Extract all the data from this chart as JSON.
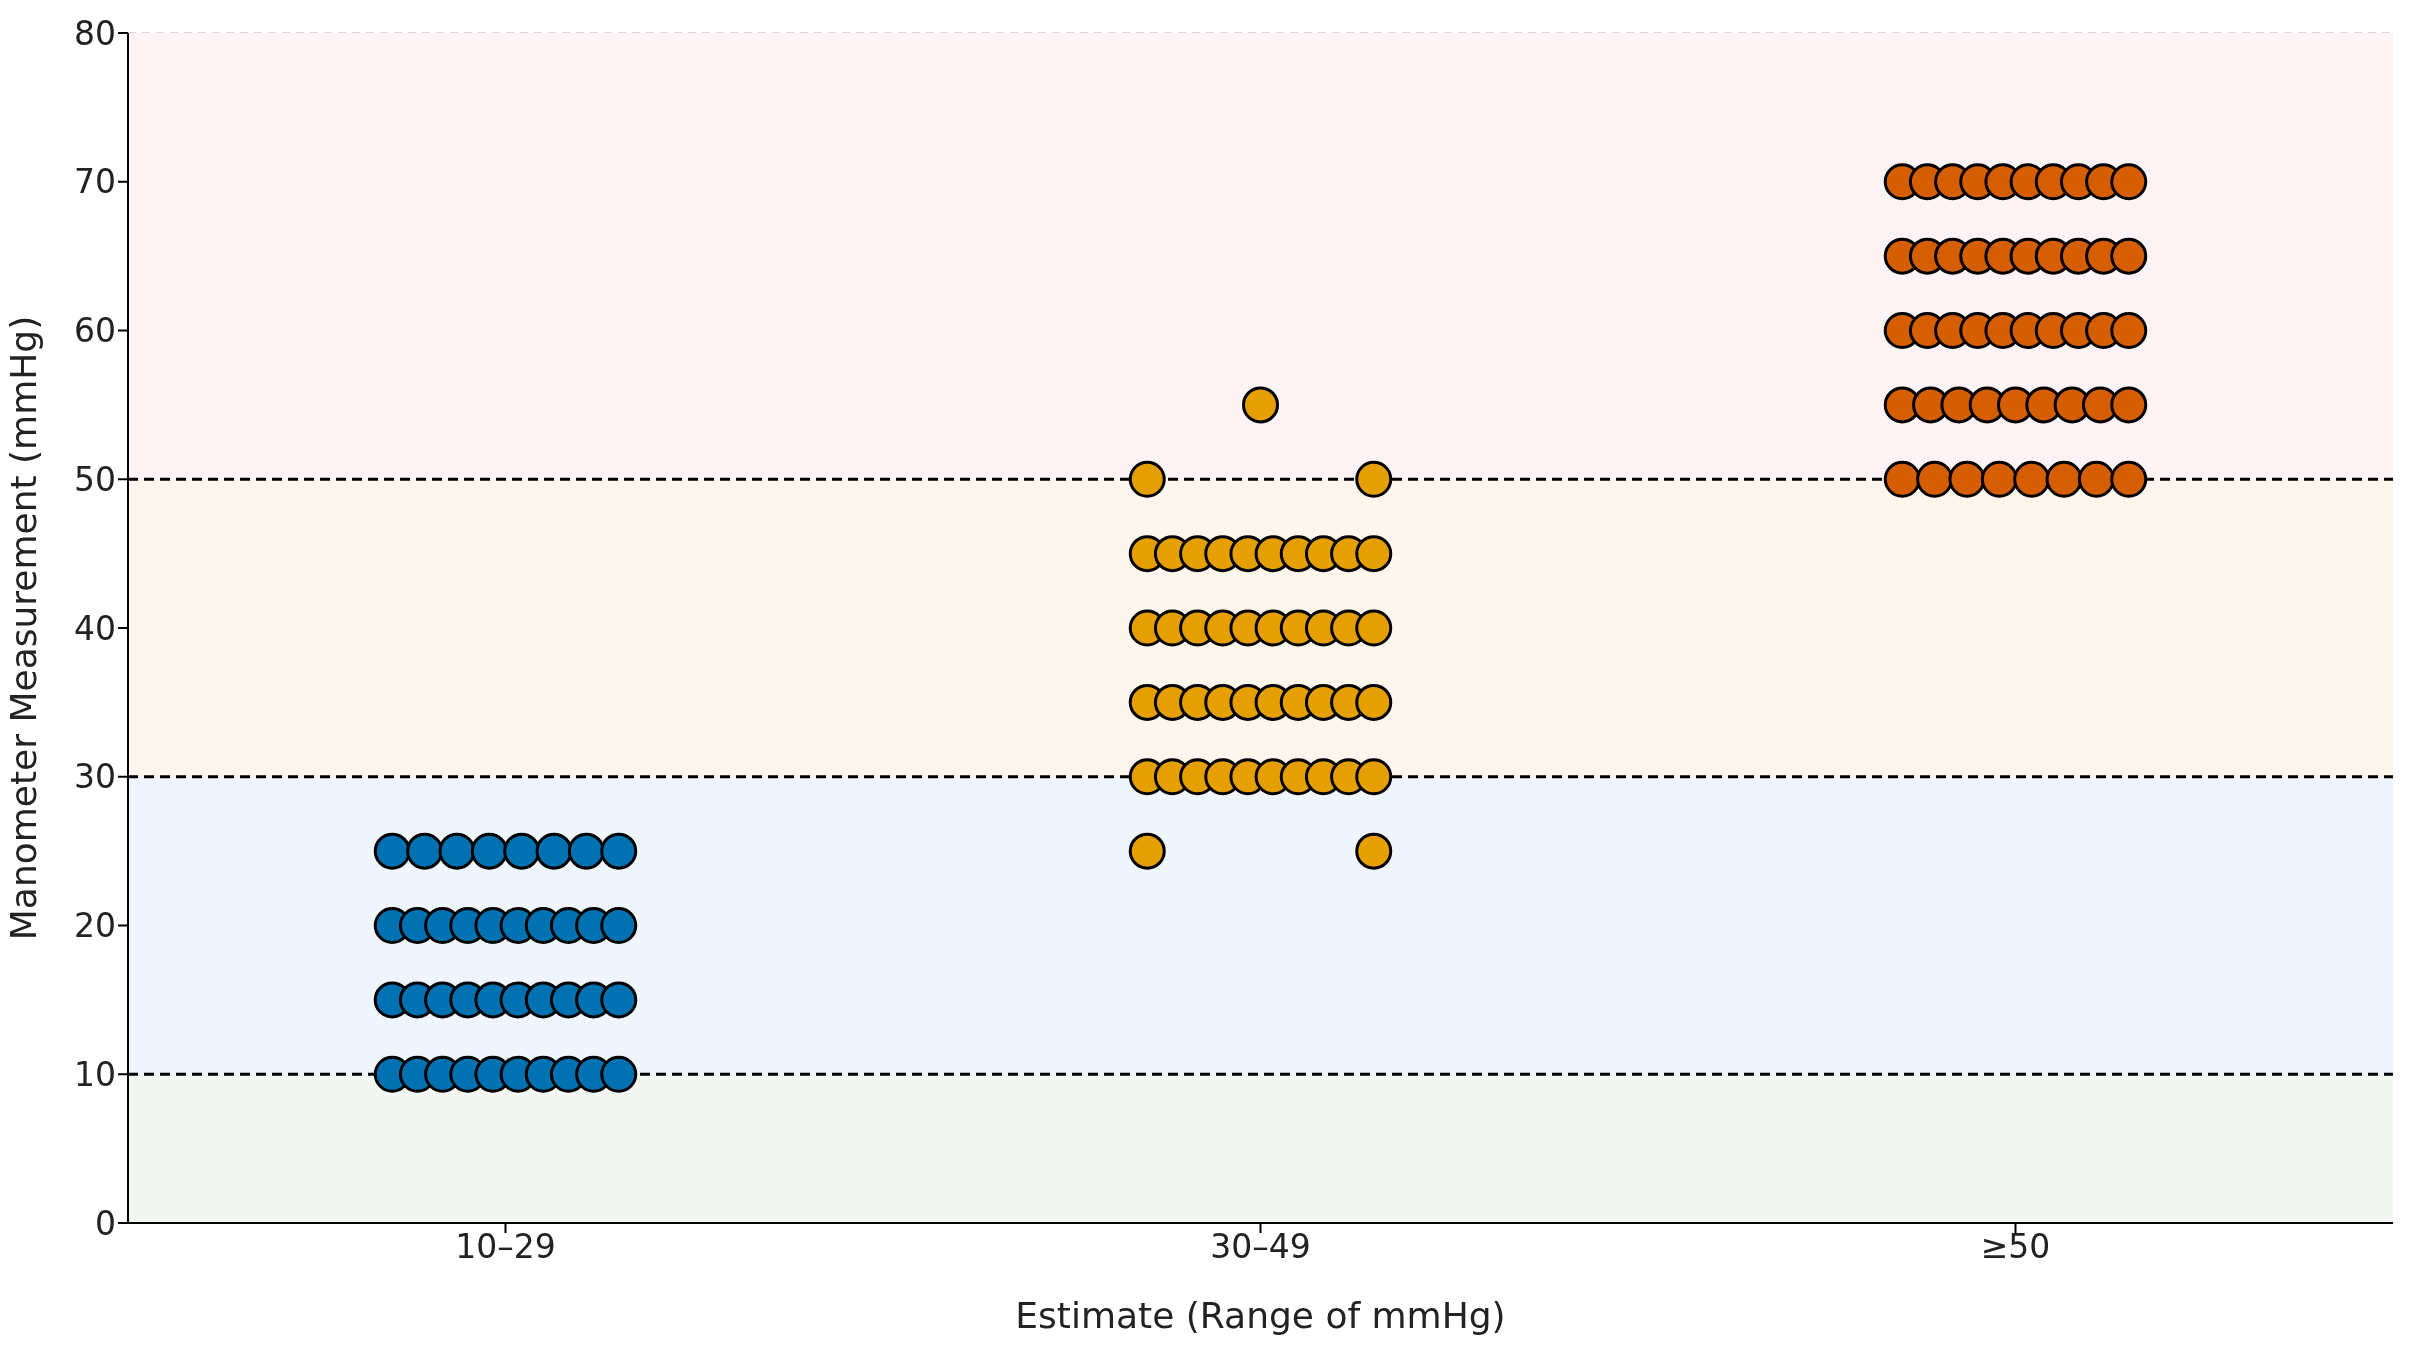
{
  "chart_data": {
    "type": "scatter",
    "xlabel": "Estimate (Range of mmHg)",
    "ylabel": "Manometer Measurement (mmHg)",
    "categories": [
      "10–29",
      "30–49",
      "≥50"
    ],
    "ylim": [
      0,
      80
    ],
    "yticks": [
      0,
      10,
      20,
      30,
      40,
      50,
      60,
      70,
      80
    ],
    "grid": true,
    "marker": "circle",
    "bands": [
      {
        "axis": "y",
        "from": 0,
        "to": 10,
        "color": "#f2f8f1"
      },
      {
        "axis": "y",
        "from": 10,
        "to": 30,
        "color": "#eef5fc"
      },
      {
        "axis": "y",
        "from": 30,
        "to": 50,
        "color": "#fdf6ec"
      },
      {
        "axis": "y",
        "from": 50,
        "to": 80,
        "color": "#fdf3f4"
      }
    ],
    "ref_lines": [
      {
        "axis": "y",
        "value": 10,
        "color": "#000000",
        "line_style": "dashed"
      },
      {
        "axis": "y",
        "value": 30,
        "color": "#000000",
        "line_style": "dashed"
      },
      {
        "axis": "y",
        "value": 50,
        "color": "#000000",
        "line_style": "dashed"
      }
    ],
    "series": [
      {
        "color": "#0072b2",
        "x": [
          "10–29",
          "10–29",
          "10–29",
          "10–29",
          "10–29",
          "10–29",
          "10–29",
          "10–29",
          "10–29",
          "10–29",
          "10–29",
          "10–29",
          "10–29",
          "10–29",
          "10–29",
          "10–29",
          "10–29",
          "10–29",
          "10–29",
          "10–29",
          "10–29",
          "10–29",
          "10–29",
          "10–29",
          "10–29",
          "10–29",
          "10–29",
          "10–29",
          "10–29",
          "10–29",
          "10–29",
          "10–29",
          "10–29",
          "10–29",
          "10–29",
          "10–29",
          "10–29",
          "10–29"
        ],
        "values": [
          25,
          25,
          25,
          25,
          25,
          25,
          25,
          25,
          20,
          20,
          20,
          20,
          20,
          20,
          20,
          20,
          20,
          20,
          15,
          15,
          15,
          15,
          15,
          15,
          15,
          15,
          15,
          15,
          10,
          10,
          10,
          10,
          10,
          10,
          10,
          10,
          10,
          10
        ]
      },
      {
        "color": "#e69f00",
        "x": [
          "30–49",
          "30–49",
          "30–49",
          "30–49",
          "30–49",
          "30–49",
          "30–49",
          "30–49",
          "30–49",
          "30–49",
          "30–49",
          "30–49",
          "30–49",
          "30–49",
          "30–49",
          "30–49",
          "30–49",
          "30–49",
          "30–49",
          "30–49",
          "30–49",
          "30–49",
          "30–49",
          "30–49",
          "30–49",
          "30–49",
          "30–49",
          "30–49",
          "30–49",
          "30–49",
          "30–49",
          "30–49",
          "30–49",
          "30–49",
          "30–49",
          "30–49",
          "30–49",
          "30–49",
          "30–49",
          "30–49",
          "30–49",
          "30–49",
          "30–49",
          "30–49",
          "30–49"
        ],
        "values": [
          55,
          50,
          50,
          45,
          45,
          45,
          45,
          45,
          45,
          45,
          45,
          45,
          45,
          40,
          40,
          40,
          40,
          40,
          40,
          40,
          40,
          40,
          40,
          35,
          35,
          35,
          35,
          35,
          35,
          35,
          35,
          35,
          35,
          30,
          30,
          30,
          30,
          30,
          30,
          30,
          30,
          30,
          30,
          25,
          25
        ]
      },
      {
        "color": "#d55e00",
        "x": [
          "≥50",
          "≥50",
          "≥50",
          "≥50",
          "≥50",
          "≥50",
          "≥50",
          "≥50",
          "≥50",
          "≥50",
          "≥50",
          "≥50",
          "≥50",
          "≥50",
          "≥50",
          "≥50",
          "≥50",
          "≥50",
          "≥50",
          "≥50",
          "≥50",
          "≥50",
          "≥50",
          "≥50",
          "≥50",
          "≥50",
          "≥50",
          "≥50",
          "≥50",
          "≥50",
          "≥50",
          "≥50",
          "≥50",
          "≥50",
          "≥50",
          "≥50",
          "≥50",
          "≥50",
          "≥50",
          "≥50",
          "≥50",
          "≥50",
          "≥50",
          "≥50",
          "≥50",
          "≥50",
          "≥50"
        ],
        "values": [
          70,
          70,
          70,
          70,
          70,
          70,
          70,
          70,
          70,
          70,
          65,
          65,
          65,
          65,
          65,
          65,
          65,
          65,
          65,
          65,
          60,
          60,
          60,
          60,
          60,
          60,
          60,
          60,
          60,
          60,
          55,
          55,
          55,
          55,
          55,
          55,
          55,
          55,
          55,
          50,
          50,
          50,
          50,
          50,
          50,
          50,
          50
        ]
      }
    ]
  }
}
